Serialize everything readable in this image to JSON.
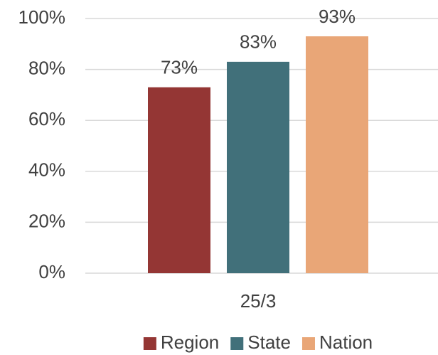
{
  "chart_data": {
    "type": "bar",
    "categories": [
      "25/3"
    ],
    "series": [
      {
        "name": "Region",
        "color": "#943634",
        "values": [
          73
        ],
        "value_labels": [
          "73%"
        ]
      },
      {
        "name": "State",
        "color": "#41707a",
        "values": [
          83
        ],
        "value_labels": [
          "83%"
        ]
      },
      {
        "name": "Nation",
        "color": "#e9a677",
        "values": [
          93
        ],
        "value_labels": [
          "93%"
        ]
      }
    ],
    "ylim": [
      0,
      100
    ],
    "yticks": [
      {
        "value": 0,
        "label": "0%"
      },
      {
        "value": 20,
        "label": "20%"
      },
      {
        "value": 40,
        "label": "40%"
      },
      {
        "value": 60,
        "label": "60%"
      },
      {
        "value": 80,
        "label": "80%"
      },
      {
        "value": 100,
        "label": "100%"
      }
    ],
    "grid": true,
    "legend": "bottom"
  }
}
